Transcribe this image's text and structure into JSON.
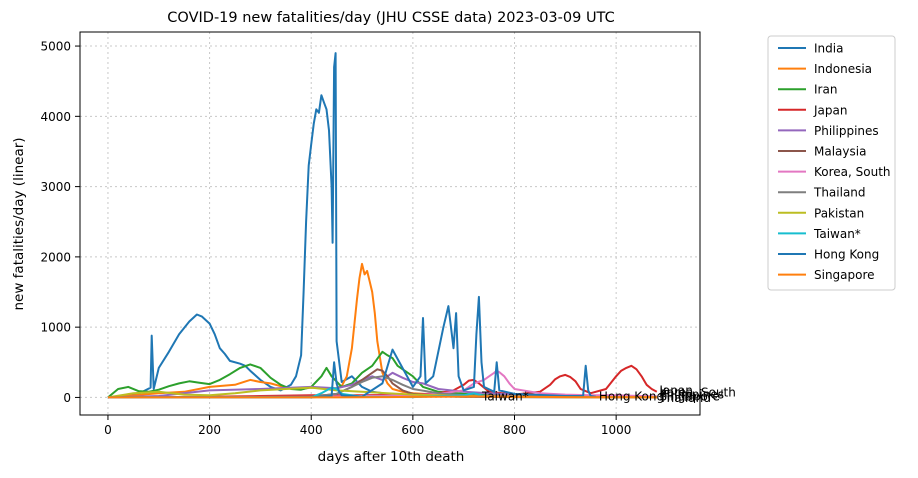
{
  "chart_data": {
    "type": "line",
    "title": "COVID-19 new fatalities/day (JHU CSSE data) 2023-03-09 UTC",
    "xlabel": "days after 10th death",
    "ylabel": "new fatalities/day (linear)",
    "xlim": [
      -55,
      1165
    ],
    "ylim": [
      -250,
      5200
    ],
    "xticks": [
      0,
      200,
      400,
      600,
      800,
      1000
    ],
    "yticks": [
      0,
      1000,
      2000,
      3000,
      4000,
      5000
    ],
    "grid": true,
    "legend_position": "right-outside",
    "end_label_color": "#000000",
    "series": [
      {
        "name": "India",
        "color": "#1f77b4",
        "x": [
          0,
          30,
          60,
          84,
          86,
          90,
          100,
          120,
          140,
          160,
          175,
          185,
          200,
          210,
          220,
          230,
          240,
          260,
          270,
          280,
          300,
          320,
          340,
          360,
          370,
          380,
          385,
          390,
          395,
          400,
          405,
          410,
          415,
          420,
          425,
          430,
          435,
          440,
          442,
          445,
          448,
          450,
          460,
          480,
          500,
          520,
          540,
          560,
          580,
          600,
          620,
          640,
          660,
          680,
          700,
          720,
          740,
          760,
          780,
          800,
          850,
          900,
          950,
          980,
          1000,
          1030,
          1060,
          1080
        ],
        "y": [
          0,
          20,
          50,
          140,
          880,
          120,
          420,
          650,
          900,
          1080,
          1180,
          1150,
          1050,
          900,
          700,
          620,
          520,
          480,
          450,
          380,
          250,
          150,
          100,
          180,
          300,
          600,
          1500,
          2500,
          3300,
          3600,
          3900,
          4100,
          4050,
          4300,
          4200,
          4100,
          3800,
          3000,
          2200,
          4700,
          4900,
          800,
          220,
          300,
          150,
          80,
          60,
          40,
          30,
          25,
          20,
          18,
          15,
          12,
          10,
          10,
          8,
          8,
          6,
          6,
          5,
          5,
          4,
          4,
          3,
          3,
          2,
          2
        ]
      },
      {
        "name": "Indonesia",
        "color": "#ff7f0e",
        "x": [
          0,
          50,
          100,
          150,
          200,
          250,
          280,
          300,
          320,
          340,
          360,
          380,
          400,
          420,
          440,
          460,
          470,
          480,
          490,
          495,
          500,
          505,
          510,
          515,
          520,
          525,
          530,
          540,
          550,
          560,
          580,
          600,
          650,
          700,
          750,
          800,
          850,
          900,
          950,
          1000,
          1050,
          1080
        ],
        "y": [
          0,
          30,
          60,
          80,
          150,
          180,
          250,
          220,
          200,
          160,
          130,
          120,
          140,
          130,
          110,
          160,
          300,
          700,
          1400,
          1700,
          1900,
          1750,
          1800,
          1650,
          1500,
          1200,
          800,
          350,
          200,
          120,
          80,
          60,
          40,
          30,
          25,
          20,
          15,
          12,
          10,
          8,
          6,
          5
        ]
      },
      {
        "name": "Iran",
        "color": "#2ca02c",
        "x": [
          0,
          20,
          40,
          60,
          80,
          100,
          120,
          140,
          160,
          180,
          200,
          220,
          240,
          260,
          280,
          300,
          320,
          340,
          360,
          380,
          400,
          420,
          430,
          440,
          460,
          480,
          500,
          520,
          530,
          540,
          550,
          560,
          570,
          580,
          600,
          620,
          650,
          700,
          750,
          800,
          850,
          900,
          950,
          1000,
          1050,
          1080
        ],
        "y": [
          0,
          120,
          150,
          90,
          80,
          110,
          160,
          200,
          230,
          210,
          190,
          250,
          330,
          420,
          470,
          420,
          280,
          180,
          120,
          110,
          150,
          300,
          420,
          300,
          150,
          200,
          350,
          450,
          550,
          650,
          600,
          560,
          450,
          400,
          300,
          150,
          80,
          50,
          30,
          20,
          15,
          10,
          8,
          5,
          3,
          2
        ]
      },
      {
        "name": "Japan",
        "color": "#d62728",
        "x": [
          0,
          100,
          200,
          300,
          400,
          500,
          600,
          650,
          680,
          700,
          710,
          720,
          730,
          750,
          800,
          850,
          870,
          880,
          890,
          900,
          910,
          920,
          930,
          950,
          980,
          1000,
          1010,
          1020,
          1030,
          1040,
          1050,
          1060,
          1070,
          1080
        ],
        "y": [
          0,
          5,
          10,
          20,
          30,
          30,
          40,
          60,
          100,
          180,
          240,
          250,
          200,
          80,
          40,
          80,
          180,
          260,
          300,
          320,
          290,
          230,
          120,
          60,
          120,
          300,
          380,
          420,
          450,
          400,
          300,
          180,
          120,
          80
        ]
      },
      {
        "name": "Philippines",
        "color": "#9467bd",
        "x": [
          0,
          100,
          200,
          300,
          400,
          450,
          480,
          500,
          520,
          540,
          560,
          580,
          600,
          620,
          650,
          700,
          750,
          800,
          850,
          900,
          950,
          1000,
          1050,
          1080
        ],
        "y": [
          0,
          20,
          100,
          120,
          150,
          130,
          180,
          250,
          300,
          250,
          350,
          280,
          220,
          200,
          120,
          80,
          60,
          40,
          30,
          20,
          15,
          10,
          8,
          5
        ]
      },
      {
        "name": "Malaysia",
        "color": "#8c564b",
        "x": [
          0,
          200,
          350,
          400,
          450,
          480,
          500,
          520,
          530,
          540,
          550,
          560,
          580,
          600,
          650,
          700,
          800,
          900,
          1000,
          1080
        ],
        "y": [
          0,
          2,
          5,
          10,
          50,
          150,
          250,
          350,
          400,
          380,
          300,
          200,
          100,
          50,
          20,
          10,
          5,
          3,
          2,
          1
        ]
      },
      {
        "name": "Korea, South",
        "color": "#e377c2",
        "x": [
          0,
          200,
          400,
          500,
          600,
          650,
          700,
          720,
          740,
          750,
          760,
          765,
          770,
          780,
          790,
          800,
          850,
          900,
          950,
          1000,
          1050,
          1080
        ],
        "y": [
          0,
          5,
          10,
          20,
          30,
          50,
          100,
          200,
          250,
          300,
          350,
          380,
          360,
          300,
          200,
          120,
          60,
          40,
          30,
          30,
          20,
          15
        ]
      },
      {
        "name": "Thailand",
        "color": "#7f7f7f",
        "x": [
          0,
          200,
          400,
          450,
          480,
          500,
          520,
          540,
          560,
          580,
          600,
          650,
          700,
          800,
          900,
          1000,
          1080
        ],
        "y": [
          0,
          2,
          10,
          50,
          150,
          220,
          280,
          300,
          250,
          180,
          120,
          60,
          30,
          20,
          10,
          5,
          3
        ]
      },
      {
        "name": "Pakistan",
        "color": "#bcbd22",
        "x": [
          0,
          50,
          100,
          150,
          200,
          250,
          300,
          350,
          400,
          450,
          500,
          550,
          600,
          650,
          700,
          800,
          900,
          1000,
          1080
        ],
        "y": [
          0,
          60,
          80,
          40,
          30,
          60,
          100,
          120,
          140,
          100,
          80,
          60,
          40,
          30,
          20,
          10,
          5,
          3,
          2
        ]
      },
      {
        "name": "Taiwan*",
        "color": "#17becf",
        "x": [
          0,
          300,
          400,
          420,
          430,
          440,
          450,
          460,
          500,
          600,
          700,
          720,
          730,
          740
        ],
        "y": [
          0,
          0,
          0,
          60,
          100,
          140,
          120,
          50,
          10,
          5,
          30,
          60,
          40,
          20
        ]
      },
      {
        "name": "Hong Kong",
        "color": "#1f77b4",
        "x": [
          0,
          400,
          440,
          445,
          450,
          455,
          460,
          500,
          540,
          560,
          600,
          615,
          620,
          625,
          640,
          660,
          670,
          675,
          680,
          685,
          690,
          700,
          720,
          725,
          730,
          735,
          740,
          760,
          765,
          770,
          800,
          900,
          935,
          940,
          945,
          950,
          960
        ],
        "y": [
          0,
          0,
          20,
          500,
          200,
          80,
          30,
          10,
          200,
          680,
          150,
          300,
          1130,
          200,
          300,
          1000,
          1300,
          1000,
          700,
          1200,
          300,
          100,
          150,
          900,
          1430,
          500,
          150,
          80,
          500,
          100,
          50,
          20,
          20,
          450,
          100,
          20,
          10
        ]
      },
      {
        "name": "Singapore",
        "color": "#ff7f0e",
        "x": [
          0,
          300,
          450,
          500,
          550,
          600,
          650,
          700,
          750,
          800,
          850,
          900,
          950,
          1000,
          1050,
          1080
        ],
        "y": [
          0,
          0,
          1,
          3,
          5,
          8,
          10,
          12,
          15,
          10,
          8,
          5,
          4,
          3,
          2,
          1
        ]
      }
    ],
    "end_labels": [
      {
        "text": "Taiwan*",
        "x": 736,
        "y": 10
      },
      {
        "text": "Hong Kong",
        "x": 966,
        "y": 10
      },
      {
        "text": "Japan",
        "x": 1085,
        "y": 100
      },
      {
        "text": "Korea, South",
        "x": 1085,
        "y": 70
      },
      {
        "text": "Philippines",
        "x": 1085,
        "y": 40
      },
      {
        "text": "Singapore",
        "x": 1085,
        "y": 15
      },
      {
        "text": "Thailand",
        "x": 1085,
        "y": -10
      }
    ]
  }
}
